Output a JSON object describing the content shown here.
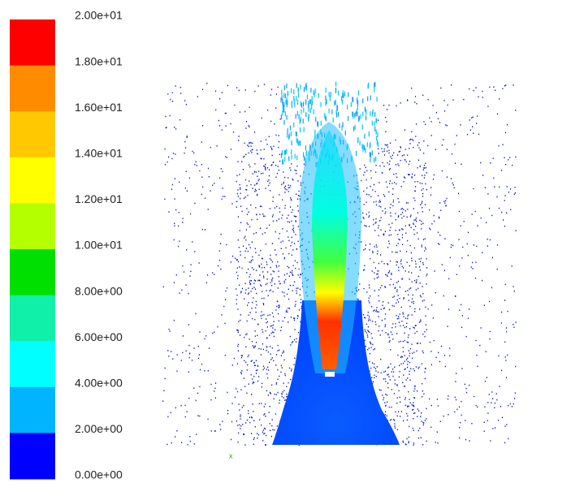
{
  "colorbar": {
    "labels": [
      "2.00e+01",
      "1.80e+01",
      "1.60e+01",
      "1.40e+01",
      "1.20e+01",
      "1.00e+01",
      "8.00e+00",
      "6.00e+00",
      "4.00e+00",
      "2.00e+00",
      "0.00e+00"
    ],
    "colors": [
      "#ff0000",
      "#ff8c00",
      "#ffc800",
      "#ffff00",
      "#b4ff00",
      "#00e000",
      "#10f0a8",
      "#00ffff",
      "#00b4ff",
      "#0000ff"
    ]
  }
}
